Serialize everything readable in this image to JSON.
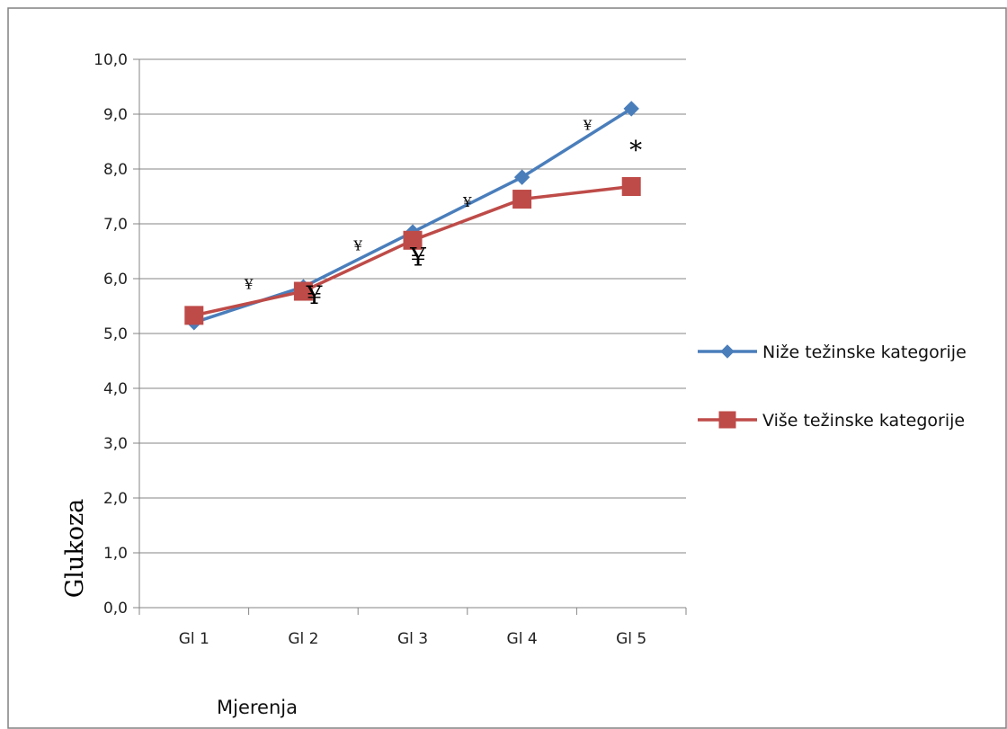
{
  "chart_data": {
    "type": "line",
    "categories": [
      "Gl 1",
      "Gl 2",
      "Gl 3",
      "Gl 4",
      "Gl 5"
    ],
    "series": [
      {
        "name": "Niže težinske kategorije",
        "values": [
          5.2,
          5.85,
          6.85,
          7.85,
          9.1
        ],
        "color": "#4a7ebb",
        "marker": "diamond"
      },
      {
        "name": "Više težinske kategorije",
        "values": [
          5.33,
          5.77,
          6.7,
          7.45,
          7.68
        ],
        "color": "#be4b48",
        "marker": "square"
      }
    ],
    "ylim": [
      0,
      10
    ],
    "yticks": [
      "0,0",
      "1,0",
      "2,0",
      "3,0",
      "4,0",
      "5,0",
      "6,0",
      "7,0",
      "8,0",
      "9,0",
      "10,0"
    ],
    "ylabel": "Glukoza",
    "xlabel": "Mjerenja",
    "grid": true,
    "legend": "right",
    "annotations": [
      {
        "text": "¥",
        "x": 1.5,
        "y": 5.9,
        "size": "small"
      },
      {
        "text": "¥",
        "x": 2.5,
        "y": 6.6,
        "size": "small"
      },
      {
        "text": "¥",
        "x": 3.5,
        "y": 7.4,
        "size": "small"
      },
      {
        "text": "¥",
        "x": 4.6,
        "y": 8.8,
        "size": "small"
      },
      {
        "text": "¥",
        "x": 2.1,
        "y": 5.7,
        "size": "large"
      },
      {
        "text": "¥",
        "x": 3.05,
        "y": 6.4,
        "size": "large"
      },
      {
        "text": "*",
        "x": 5.04,
        "y": 8.35,
        "size": "large"
      }
    ]
  }
}
